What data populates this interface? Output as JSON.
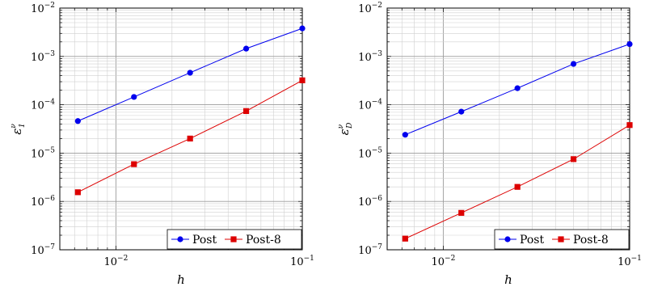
{
  "chart_data": [
    {
      "type": "line",
      "xscale": "log",
      "yscale": "log",
      "xlim": [
        0.005,
        0.1
      ],
      "ylim": [
        1e-07,
        0.01
      ],
      "grid": true,
      "legend_position": "bottom-right",
      "xlabel": "h",
      "ylabel": "ε",
      "ylabel_sub": "1",
      "ylabel_sup": "ν",
      "xticks": [
        {
          "base": "10",
          "exp": "−2",
          "value": 0.01
        },
        {
          "base": "10",
          "exp": "−1",
          "value": 0.1
        }
      ],
      "yticks": [
        {
          "base": "10",
          "exp": "−7",
          "value": 1e-07
        },
        {
          "base": "10",
          "exp": "−6",
          "value": 1e-06
        },
        {
          "base": "10",
          "exp": "−5",
          "value": 1e-05
        },
        {
          "base": "10",
          "exp": "−4",
          "value": 0.0001
        },
        {
          "base": "10",
          "exp": "−3",
          "value": 0.001
        },
        {
          "base": "10",
          "exp": "−2",
          "value": 0.01
        }
      ],
      "x": [
        0.00625,
        0.0125,
        0.025,
        0.05,
        0.1
      ],
      "series": [
        {
          "name": "Post",
          "color": "#0000ee",
          "marker": "circle",
          "values": [
            4.6e-05,
            0.000145,
            0.00046,
            0.00145,
            0.0038
          ]
        },
        {
          "name": "Post-8",
          "color": "#dd0000",
          "marker": "square",
          "values": [
            1.55e-06,
            5.9e-06,
            2e-05,
            7.4e-05,
            0.00032
          ]
        }
      ]
    },
    {
      "type": "line",
      "xscale": "log",
      "yscale": "log",
      "xlim": [
        0.005,
        0.1
      ],
      "ylim": [
        1e-07,
        0.01
      ],
      "grid": true,
      "legend_position": "bottom-right",
      "xlabel": "h",
      "ylabel": "ε",
      "ylabel_sub": "D",
      "ylabel_sup": "ν",
      "xticks": [
        {
          "base": "10",
          "exp": "−2",
          "value": 0.01
        },
        {
          "base": "10",
          "exp": "−1",
          "value": 0.1
        }
      ],
      "yticks": [
        {
          "base": "10",
          "exp": "−7",
          "value": 1e-07
        },
        {
          "base": "10",
          "exp": "−6",
          "value": 1e-06
        },
        {
          "base": "10",
          "exp": "−5",
          "value": 1e-05
        },
        {
          "base": "10",
          "exp": "−4",
          "value": 0.0001
        },
        {
          "base": "10",
          "exp": "−3",
          "value": 0.001
        },
        {
          "base": "10",
          "exp": "−2",
          "value": 0.01
        }
      ],
      "x": [
        0.00625,
        0.0125,
        0.025,
        0.05,
        0.1
      ],
      "series": [
        {
          "name": "Post",
          "color": "#0000ee",
          "marker": "circle",
          "values": [
            2.4e-05,
            7.2e-05,
            0.00022,
            0.0007,
            0.0018
          ]
        },
        {
          "name": "Post-8",
          "color": "#dd0000",
          "marker": "square",
          "values": [
            1.7e-07,
            5.8e-07,
            2e-06,
            7.5e-06,
            3.8e-05
          ]
        }
      ]
    }
  ]
}
